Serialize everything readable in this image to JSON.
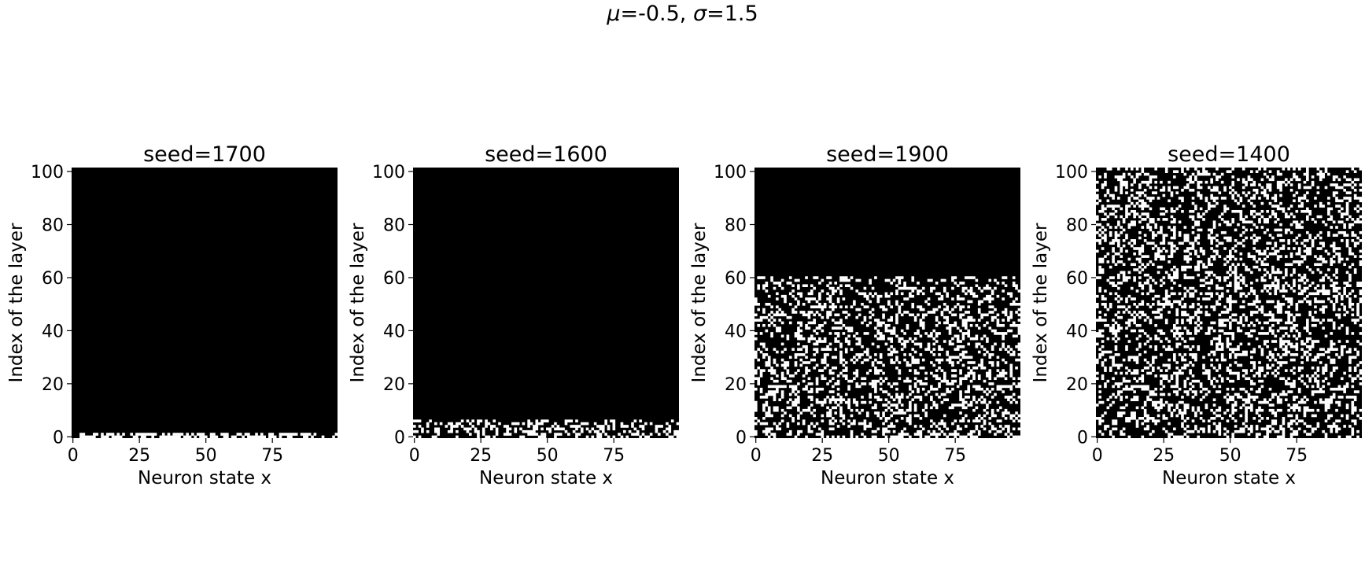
{
  "figure_title": {
    "mu_symbol": "μ",
    "mu_text": "=-0.5, ",
    "sigma_symbol": "σ",
    "sigma_text": "=1.5"
  },
  "colors": {
    "off": "#000000",
    "on": "#ffffff"
  },
  "chart_data": [
    {
      "type": "heatmap",
      "title": "seed=1700",
      "xlabel": "Neuron state x",
      "ylabel": "Index of the layer",
      "x_ticks": [
        "0",
        "25",
        "50",
        "75"
      ],
      "y_ticks": [
        "0",
        "20",
        "40",
        "60",
        "80",
        "100"
      ],
      "xlim": [
        -0.5,
        99.5
      ],
      "ylim": [
        -0.5,
        101.5
      ],
      "active_rows": [
        0,
        1
      ],
      "density": 0.55,
      "seed": 1700
    },
    {
      "type": "heatmap",
      "title": "seed=1600",
      "xlabel": "Neuron state x",
      "ylabel": "Index of the layer",
      "x_ticks": [
        "0",
        "25",
        "50",
        "75"
      ],
      "y_ticks": [
        "0",
        "20",
        "40",
        "60",
        "80",
        "100"
      ],
      "xlim": [
        -0.5,
        99.5
      ],
      "ylim": [
        -0.5,
        101.5
      ],
      "active_rows": [
        0,
        6
      ],
      "density": 0.4,
      "seed": 1600
    },
    {
      "type": "heatmap",
      "title": "seed=1900",
      "xlabel": "Neuron state x",
      "ylabel": "Index of the layer",
      "x_ticks": [
        "0",
        "25",
        "50",
        "75"
      ],
      "y_ticks": [
        "0",
        "20",
        "40",
        "60",
        "80",
        "100"
      ],
      "xlim": [
        -0.5,
        99.5
      ],
      "ylim": [
        -0.5,
        101.5
      ],
      "active_rows": [
        0,
        60
      ],
      "density": 0.3,
      "seed": 1900
    },
    {
      "type": "heatmap",
      "title": "seed=1400",
      "xlabel": "Neuron state x",
      "ylabel": "Index of the layer",
      "x_ticks": [
        "0",
        "25",
        "50",
        "75"
      ],
      "y_ticks": [
        "0",
        "20",
        "40",
        "60",
        "80",
        "100"
      ],
      "xlim": [
        -0.5,
        99.5
      ],
      "ylim": [
        -0.5,
        101.5
      ],
      "active_rows": [
        0,
        101
      ],
      "density": 0.3,
      "seed": 1400
    }
  ]
}
